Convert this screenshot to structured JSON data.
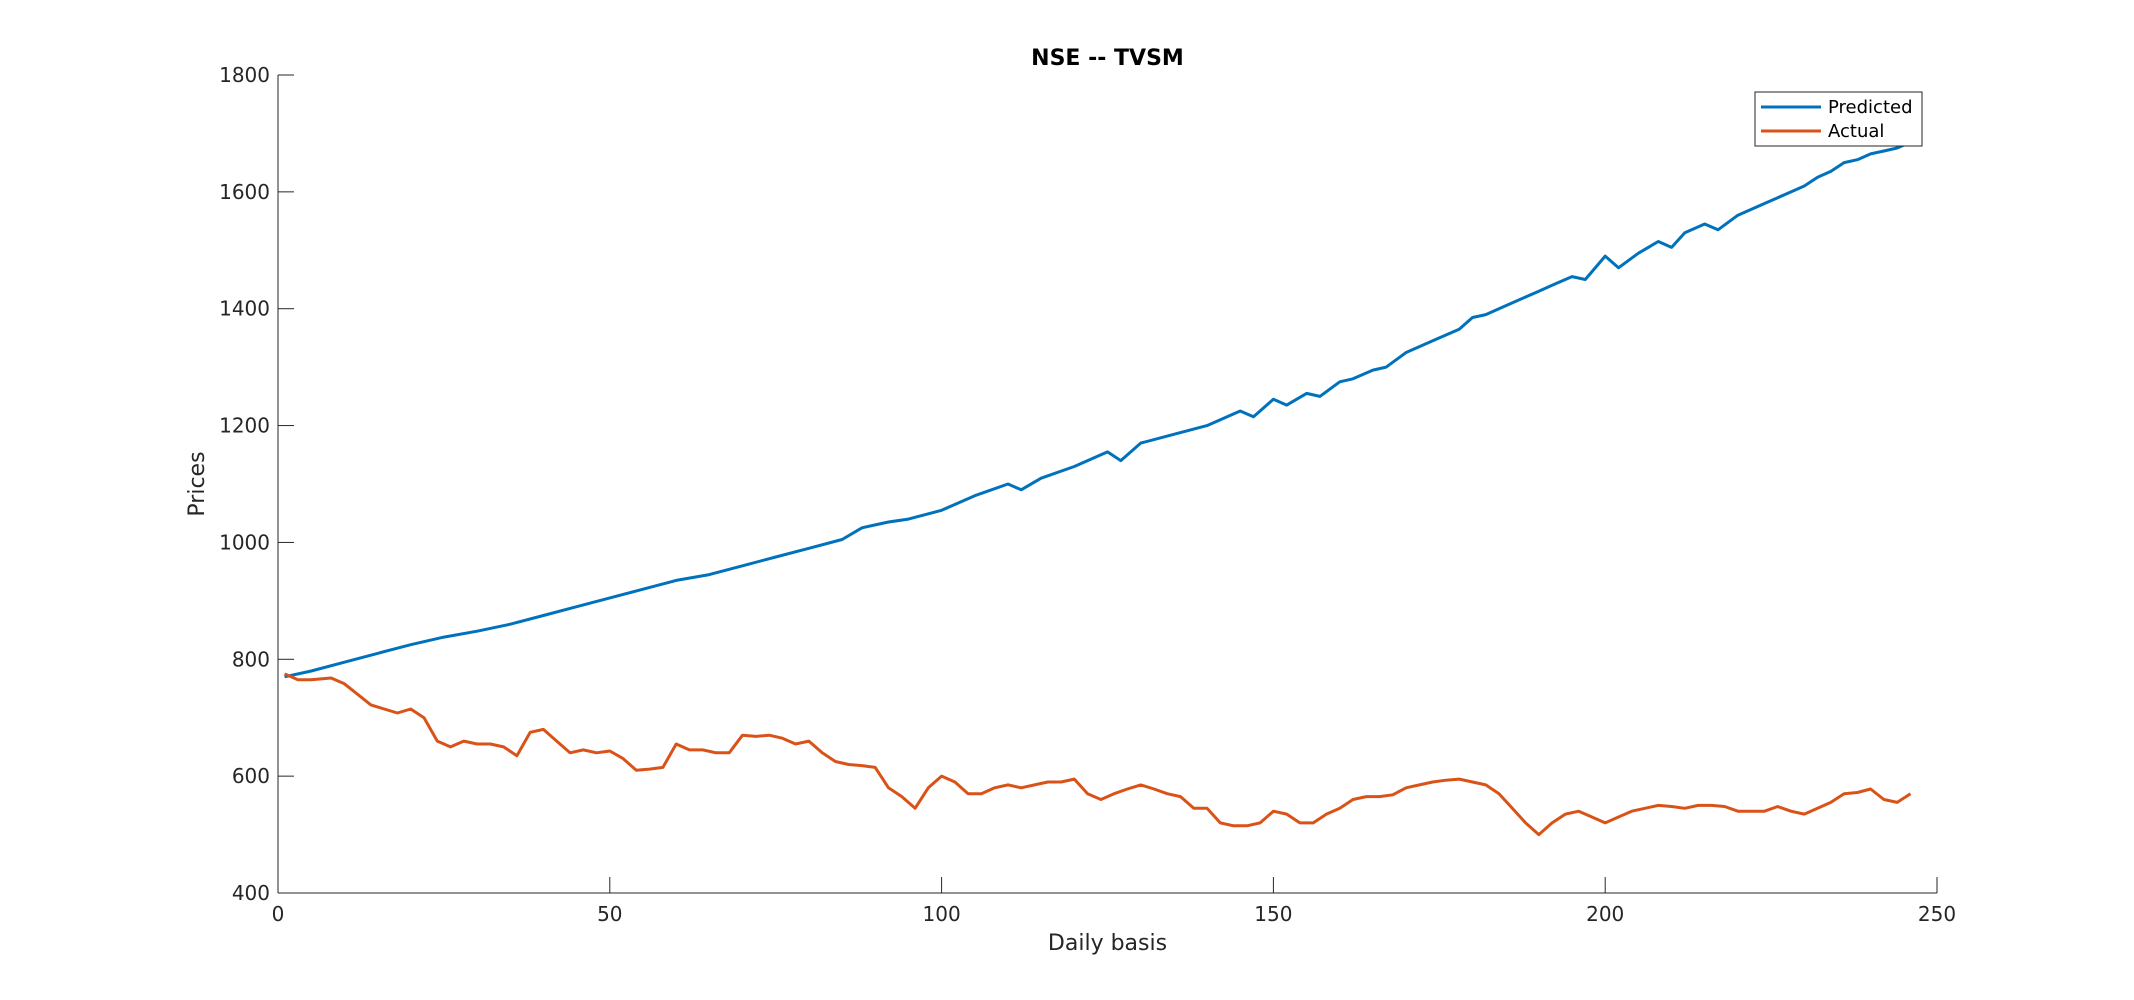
{
  "chart_data": {
    "type": "line",
    "title": "NSE -- TVSM",
    "xlabel": "Daily basis",
    "ylabel": "Prices",
    "xlim": [
      0,
      250
    ],
    "ylim": [
      400,
      1800
    ],
    "xticks": [
      0,
      50,
      100,
      150,
      200,
      250
    ],
    "yticks": [
      400,
      600,
      800,
      1000,
      1200,
      1400,
      1600,
      1800
    ],
    "grid": false,
    "legend_position": "top-right",
    "series": [
      {
        "name": "Predicted",
        "color": "#0072BD",
        "x": [
          1,
          5,
          10,
          15,
          20,
          25,
          30,
          35,
          40,
          45,
          50,
          55,
          60,
          65,
          70,
          75,
          80,
          85,
          88,
          90,
          92,
          95,
          100,
          105,
          110,
          112,
          115,
          120,
          125,
          127,
          130,
          135,
          140,
          145,
          147,
          150,
          152,
          155,
          157,
          160,
          162,
          165,
          167,
          170,
          175,
          178,
          180,
          182,
          185,
          188,
          190,
          192,
          195,
          197,
          200,
          202,
          205,
          208,
          210,
          212,
          215,
          217,
          220,
          222,
          224,
          226,
          228,
          230,
          232,
          234,
          236,
          238,
          240,
          242,
          244,
          246
        ],
        "y": [
          770,
          780,
          795,
          810,
          825,
          838,
          848,
          860,
          875,
          890,
          905,
          920,
          935,
          945,
          960,
          975,
          990,
          1005,
          1025,
          1030,
          1035,
          1040,
          1055,
          1080,
          1100,
          1090,
          1110,
          1130,
          1155,
          1140,
          1170,
          1185,
          1200,
          1225,
          1215,
          1245,
          1235,
          1255,
          1250,
          1275,
          1280,
          1295,
          1300,
          1325,
          1350,
          1365,
          1385,
          1390,
          1405,
          1420,
          1430,
          1440,
          1455,
          1450,
          1490,
          1470,
          1495,
          1515,
          1505,
          1530,
          1545,
          1535,
          1560,
          1570,
          1580,
          1590,
          1600,
          1610,
          1625,
          1635,
          1650,
          1655,
          1665,
          1670,
          1675,
          1685
        ]
      },
      {
        "name": "Actual",
        "color": "#D95319",
        "x": [
          1,
          3,
          5,
          8,
          10,
          12,
          14,
          16,
          18,
          20,
          22,
          24,
          26,
          28,
          30,
          32,
          34,
          36,
          38,
          40,
          42,
          44,
          46,
          48,
          50,
          52,
          54,
          56,
          58,
          60,
          62,
          64,
          66,
          68,
          70,
          72,
          74,
          76,
          78,
          80,
          82,
          84,
          86,
          88,
          90,
          92,
          94,
          96,
          98,
          100,
          102,
          104,
          106,
          108,
          110,
          112,
          114,
          116,
          118,
          120,
          122,
          124,
          126,
          128,
          130,
          132,
          134,
          136,
          138,
          140,
          142,
          144,
          146,
          148,
          150,
          152,
          154,
          156,
          158,
          160,
          162,
          164,
          166,
          168,
          170,
          172,
          174,
          176,
          178,
          180,
          182,
          184,
          186,
          188,
          190,
          192,
          194,
          196,
          198,
          200,
          202,
          204,
          206,
          208,
          210,
          212,
          214,
          216,
          218,
          220,
          222,
          224,
          226,
          228,
          230,
          232,
          234,
          236,
          238,
          240,
          242,
          244,
          246
        ],
        "y": [
          775,
          765,
          765,
          768,
          758,
          740,
          722,
          715,
          708,
          715,
          700,
          660,
          650,
          660,
          655,
          655,
          650,
          635,
          675,
          680,
          660,
          640,
          645,
          640,
          643,
          630,
          610,
          612,
          615,
          655,
          645,
          645,
          640,
          640,
          670,
          668,
          670,
          665,
          655,
          660,
          640,
          625,
          620,
          618,
          615,
          580,
          565,
          545,
          580,
          600,
          590,
          570,
          570,
          580,
          585,
          580,
          585,
          590,
          590,
          595,
          570,
          560,
          570,
          578,
          585,
          578,
          570,
          565,
          545,
          545,
          520,
          515,
          515,
          520,
          540,
          535,
          520,
          520,
          535,
          545,
          560,
          565,
          565,
          568,
          580,
          585,
          590,
          593,
          595,
          590,
          585,
          570,
          545,
          520,
          500,
          520,
          535,
          540,
          530,
          520,
          530,
          540,
          545,
          550,
          548,
          545,
          550,
          550,
          548,
          540,
          540,
          540,
          548,
          540,
          535,
          545,
          555,
          570,
          572,
          578,
          560,
          555,
          570
        ]
      }
    ]
  }
}
